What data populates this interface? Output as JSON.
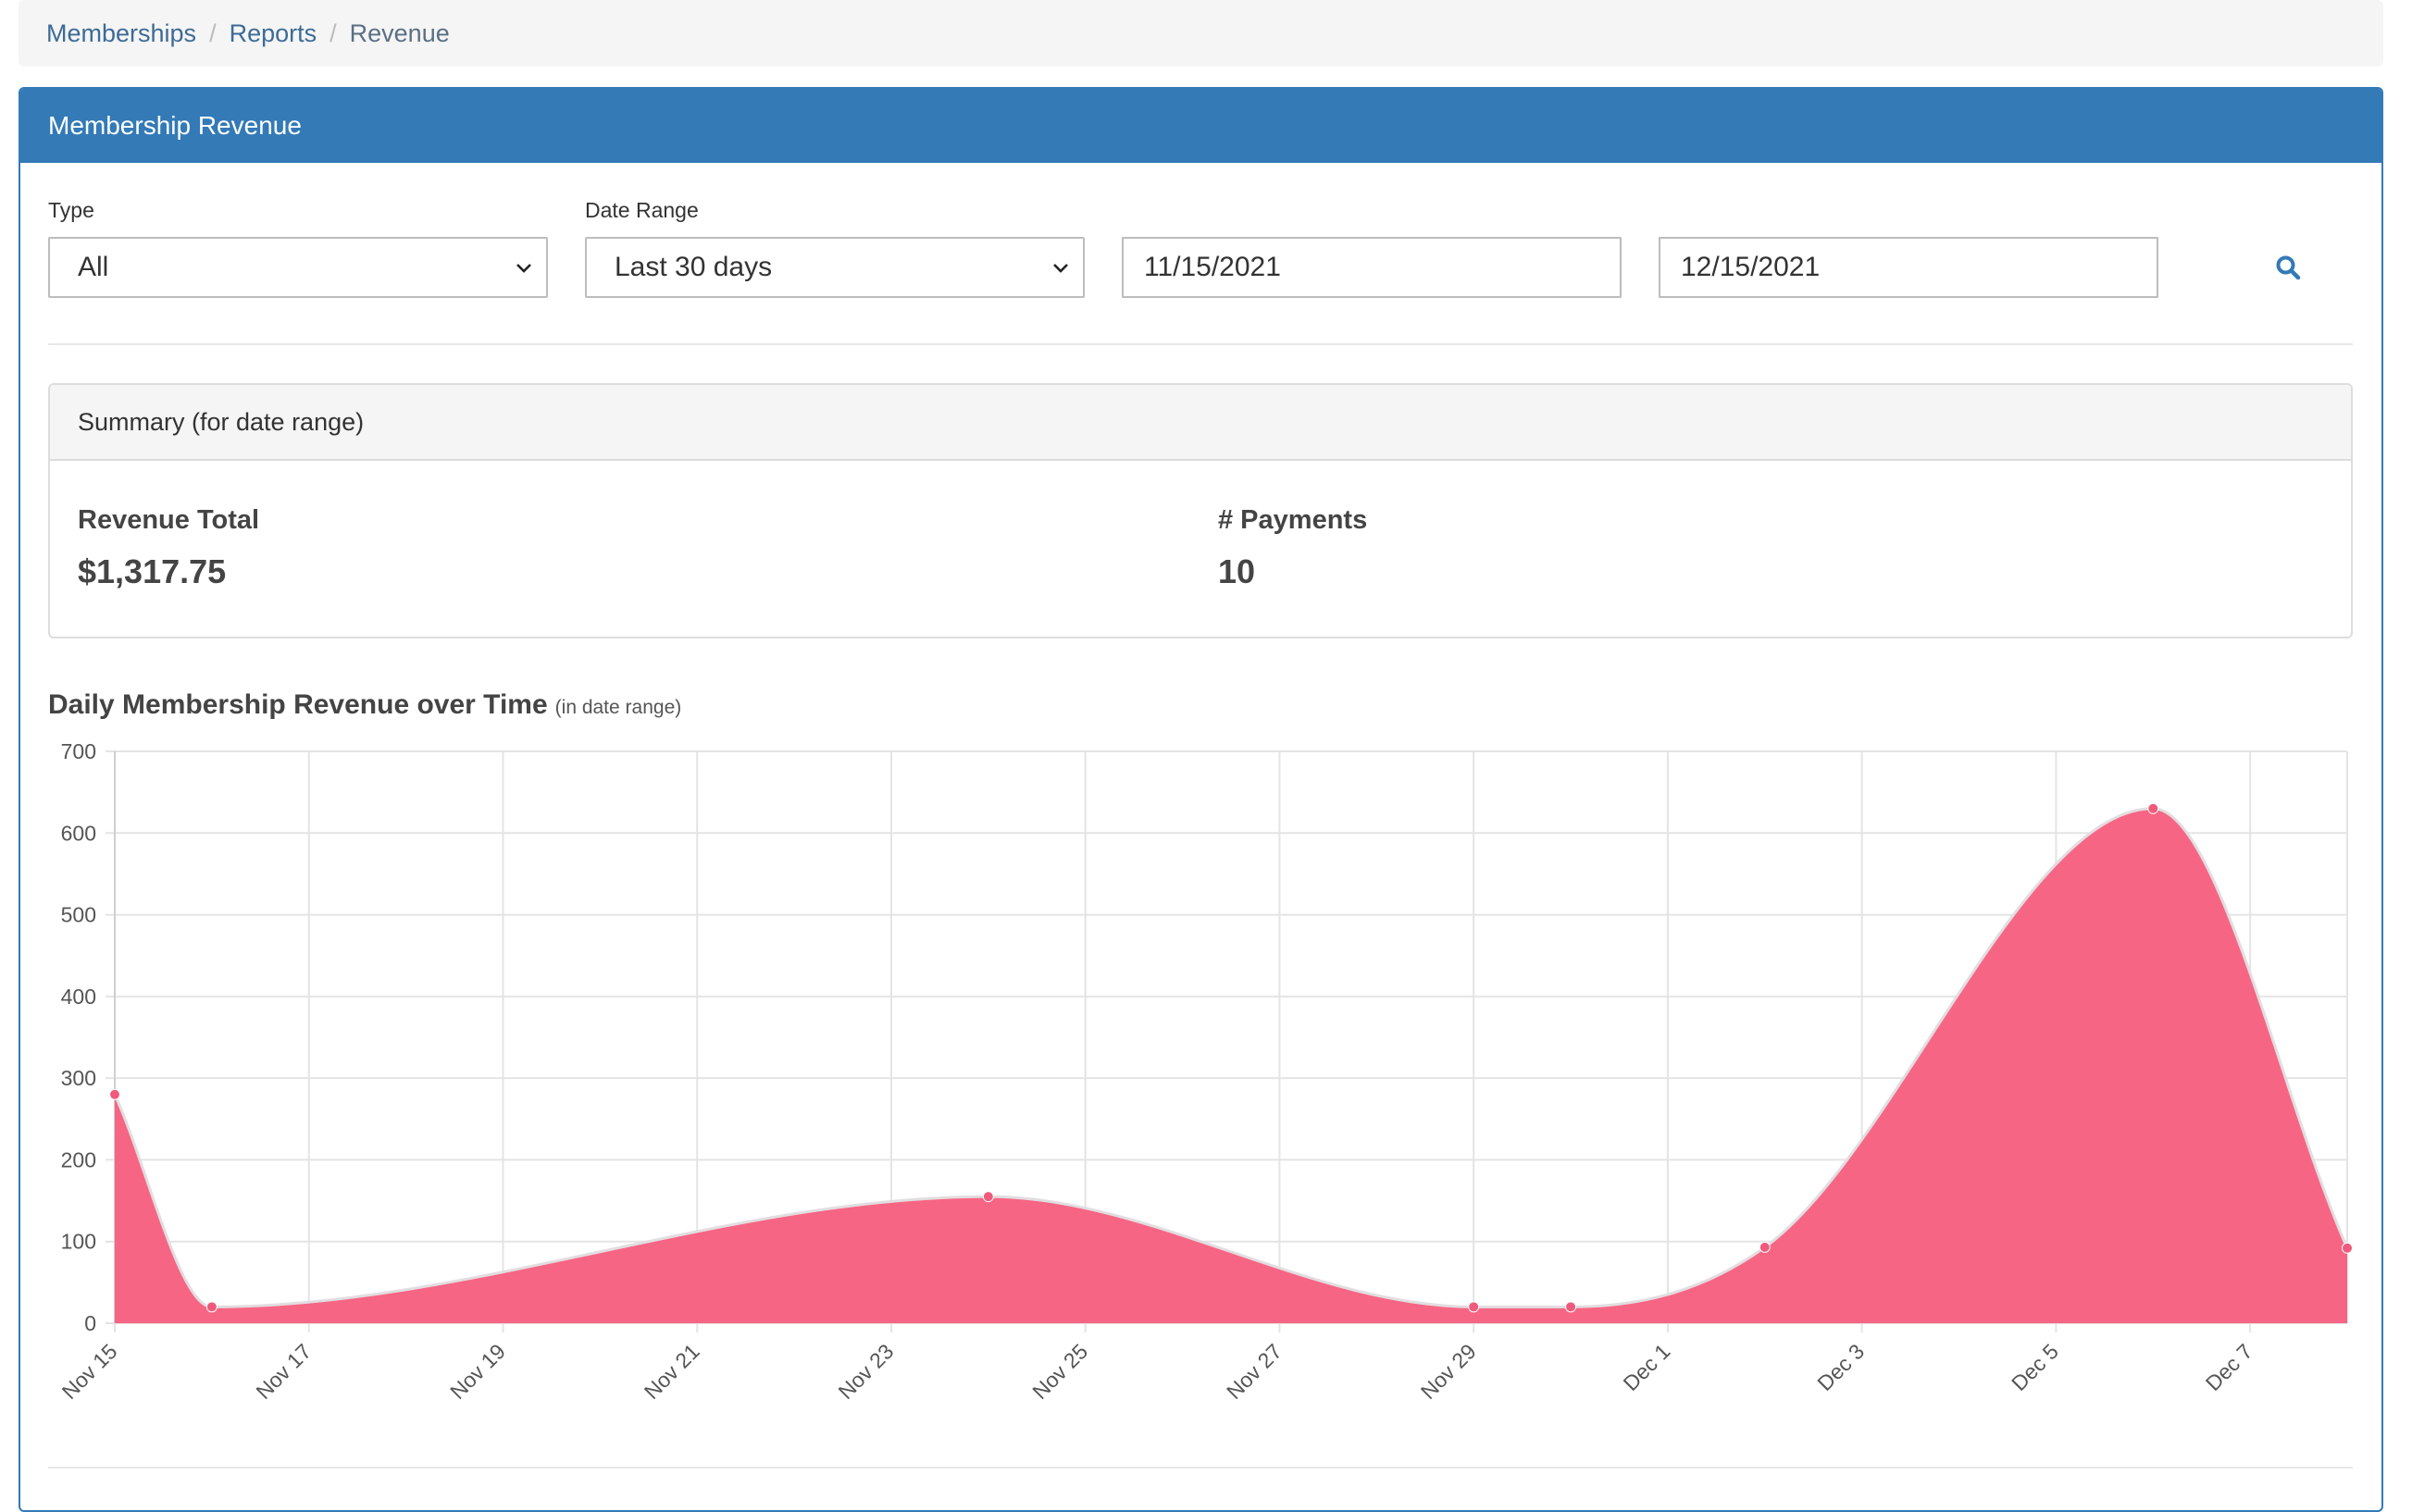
{
  "breadcrumb": {
    "items": [
      "Memberships",
      "Reports"
    ],
    "active": "Revenue",
    "separator": "/"
  },
  "panel": {
    "title": "Membership Revenue"
  },
  "filters": {
    "type": {
      "label": "Type",
      "value": "All"
    },
    "date_range": {
      "label": "Date Range",
      "value": "Last 30 days"
    },
    "start_date": "11/15/2021",
    "end_date": "12/15/2021",
    "search_icon": "search-icon"
  },
  "summary": {
    "title": "Summary (for date range)",
    "revenue_label": "Revenue Total",
    "revenue_value": "$1,317.75",
    "payments_label": "# Payments",
    "payments_value": "10"
  },
  "chart_title": {
    "main": "Daily Membership Revenue over Time",
    "sub": "(in date range)"
  },
  "colors": {
    "accent": "#337ab7",
    "series_fill": "#f76584",
    "series_point": "#ef5b7c",
    "link": "#3d6b97"
  },
  "chart_data": {
    "type": "area",
    "x_ticks": [
      "Nov 15",
      "Nov 17",
      "Nov 19",
      "Nov 21",
      "Nov 23",
      "Nov 25",
      "Nov 27",
      "Nov 29",
      "Dec 1",
      "Dec 3",
      "Dec 5",
      "Dec 7"
    ],
    "y_ticks": [
      0,
      100,
      200,
      300,
      400,
      500,
      600,
      700
    ],
    "ylim": [
      0,
      700
    ],
    "xlim": [
      "2021-11-15",
      "2021-12-08"
    ],
    "grid": true,
    "series": [
      {
        "points": [
          {
            "x": "2021-11-15",
            "y": 280
          },
          {
            "x": "2021-11-16",
            "y": 20
          },
          {
            "x": "2021-11-24",
            "y": 155
          },
          {
            "x": "2021-11-29",
            "y": 20
          },
          {
            "x": "2021-11-30",
            "y": 20
          },
          {
            "x": "2021-12-02",
            "y": 93
          },
          {
            "x": "2021-12-06",
            "y": 630
          },
          {
            "x": "2021-12-08",
            "y": 92
          }
        ]
      }
    ]
  }
}
